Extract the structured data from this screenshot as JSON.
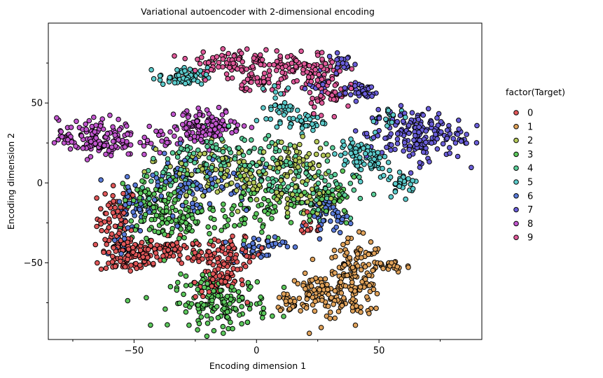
{
  "chart_data": {
    "type": "scatter",
    "title": "Variational autoencoder with 2-dimensional encoding",
    "xlabel": "Encoding dimension 1",
    "ylabel": "Encoding dimension 2",
    "xlim": [
      -85,
      92
    ],
    "ylim": [
      -98,
      100
    ],
    "xticks": [
      -50,
      0,
      50
    ],
    "yticks": [
      -50,
      0,
      50
    ],
    "xticks_minor": [
      -75,
      -25,
      25,
      75
    ],
    "yticks_minor": [
      -75,
      -25,
      25,
      75
    ],
    "grid": false,
    "legend_title": "factor(Target)",
    "legend_position": "right",
    "series": [
      {
        "name": "0",
        "color": "#e15759",
        "clusters": [
          {
            "x": -57,
            "y": -22,
            "sx": 4,
            "sy": 10,
            "n": 60
          },
          {
            "x": -52,
            "y": -45,
            "sx": 6,
            "sy": 6,
            "n": 110
          },
          {
            "x": -36,
            "y": -42,
            "sx": 6,
            "sy": 4,
            "n": 60
          },
          {
            "x": -12,
            "y": -45,
            "sx": 8,
            "sy": 5,
            "n": 80
          },
          {
            "x": -15,
            "y": -62,
            "sx": 5,
            "sy": 5,
            "n": 50
          },
          {
            "x": 22,
            "y": -28,
            "sx": 3,
            "sy": 3,
            "n": 12
          }
        ]
      },
      {
        "name": "1",
        "color": "#e0a25a",
        "clusters": [
          {
            "x": 40,
            "y": -60,
            "sx": 6,
            "sy": 12,
            "n": 150
          },
          {
            "x": 25,
            "y": -70,
            "sx": 6,
            "sy": 6,
            "n": 80
          },
          {
            "x": 55,
            "y": -52,
            "sx": 4,
            "sy": 2,
            "n": 30
          },
          {
            "x": 14,
            "y": -75,
            "sx": 3,
            "sy": 3,
            "n": 25
          }
        ]
      },
      {
        "name": "2",
        "color": "#b5c95a",
        "clusters": [
          {
            "x": -5,
            "y": 5,
            "sx": 14,
            "sy": 8,
            "n": 90
          },
          {
            "x": 15,
            "y": 15,
            "sx": 6,
            "sy": 6,
            "n": 40
          },
          {
            "x": 20,
            "y": -10,
            "sx": 6,
            "sy": 6,
            "n": 40
          },
          {
            "x": -25,
            "y": 10,
            "sx": 8,
            "sy": 8,
            "n": 30
          }
        ]
      },
      {
        "name": "3",
        "color": "#5cc85c",
        "clusters": [
          {
            "x": -40,
            "y": -15,
            "sx": 7,
            "sy": 10,
            "n": 110
          },
          {
            "x": -15,
            "y": -75,
            "sx": 10,
            "sy": 8,
            "n": 160
          },
          {
            "x": -25,
            "y": -25,
            "sx": 10,
            "sy": 8,
            "n": 80
          },
          {
            "x": 5,
            "y": -15,
            "sx": 10,
            "sy": 8,
            "n": 60
          },
          {
            "x": 30,
            "y": -10,
            "sx": 6,
            "sy": 6,
            "n": 40
          }
        ]
      },
      {
        "name": "4",
        "color": "#5ccf9a",
        "clusters": [
          {
            "x": -15,
            "y": 15,
            "sx": 12,
            "sy": 8,
            "n": 90
          },
          {
            "x": 10,
            "y": 10,
            "sx": 10,
            "sy": 10,
            "n": 70
          },
          {
            "x": 25,
            "y": -5,
            "sx": 8,
            "sy": 8,
            "n": 40
          },
          {
            "x": -35,
            "y": 5,
            "sx": 6,
            "sy": 8,
            "n": 40
          }
        ]
      },
      {
        "name": "5",
        "color": "#5ccccc",
        "clusters": [
          {
            "x": -30,
            "y": 66,
            "sx": 5,
            "sy": 3,
            "n": 60
          },
          {
            "x": 10,
            "y": 48,
            "sx": 3,
            "sy": 6,
            "n": 35
          },
          {
            "x": 20,
            "y": 38,
            "sx": 4,
            "sy": 3,
            "n": 30
          },
          {
            "x": 45,
            "y": 15,
            "sx": 5,
            "sy": 6,
            "n": 60
          },
          {
            "x": 60,
            "y": 0,
            "sx": 3,
            "sy": 4,
            "n": 30
          },
          {
            "x": 55,
            "y": 40,
            "sx": 4,
            "sy": 4,
            "n": 20
          },
          {
            "x": 40,
            "y": 22,
            "sx": 3,
            "sy": 3,
            "n": 20
          }
        ]
      },
      {
        "name": "6",
        "color": "#5a7bd9",
        "clusters": [
          {
            "x": -50,
            "y": -15,
            "sx": 4,
            "sy": 8,
            "n": 50
          },
          {
            "x": -25,
            "y": 0,
            "sx": 12,
            "sy": 10,
            "n": 80
          },
          {
            "x": 0,
            "y": -40,
            "sx": 6,
            "sy": 4,
            "n": 40
          },
          {
            "x": 30,
            "y": -20,
            "sx": 4,
            "sy": 5,
            "n": 40
          },
          {
            "x": -55,
            "y": -40,
            "sx": 3,
            "sy": 4,
            "n": 15
          }
        ]
      },
      {
        "name": "7",
        "color": "#6a5ed9",
        "clusters": [
          {
            "x": 65,
            "y": 30,
            "sx": 10,
            "sy": 8,
            "n": 180
          },
          {
            "x": 42,
            "y": 58,
            "sx": 4,
            "sy": 3,
            "n": 40
          },
          {
            "x": 35,
            "y": 75,
            "sx": 3,
            "sy": 3,
            "n": 20
          },
          {
            "x": 25,
            "y": 60,
            "sx": 3,
            "sy": 3,
            "n": 15
          }
        ]
      },
      {
        "name": "8",
        "color": "#c257cf",
        "clusters": [
          {
            "x": -65,
            "y": 28,
            "sx": 8,
            "sy": 6,
            "n": 140
          },
          {
            "x": -20,
            "y": 36,
            "sx": 7,
            "sy": 5,
            "n": 120
          },
          {
            "x": -42,
            "y": 28,
            "sx": 4,
            "sy": 3,
            "n": 20
          }
        ]
      },
      {
        "name": "9",
        "color": "#e05a9a",
        "clusters": [
          {
            "x": -10,
            "y": 75,
            "sx": 8,
            "sy": 5,
            "n": 90
          },
          {
            "x": 20,
            "y": 70,
            "sx": 8,
            "sy": 6,
            "n": 100
          },
          {
            "x": 30,
            "y": 55,
            "sx": 5,
            "sy": 5,
            "n": 40
          },
          {
            "x": 2,
            "y": 62,
            "sx": 4,
            "sy": 3,
            "n": 25
          }
        ]
      }
    ]
  }
}
